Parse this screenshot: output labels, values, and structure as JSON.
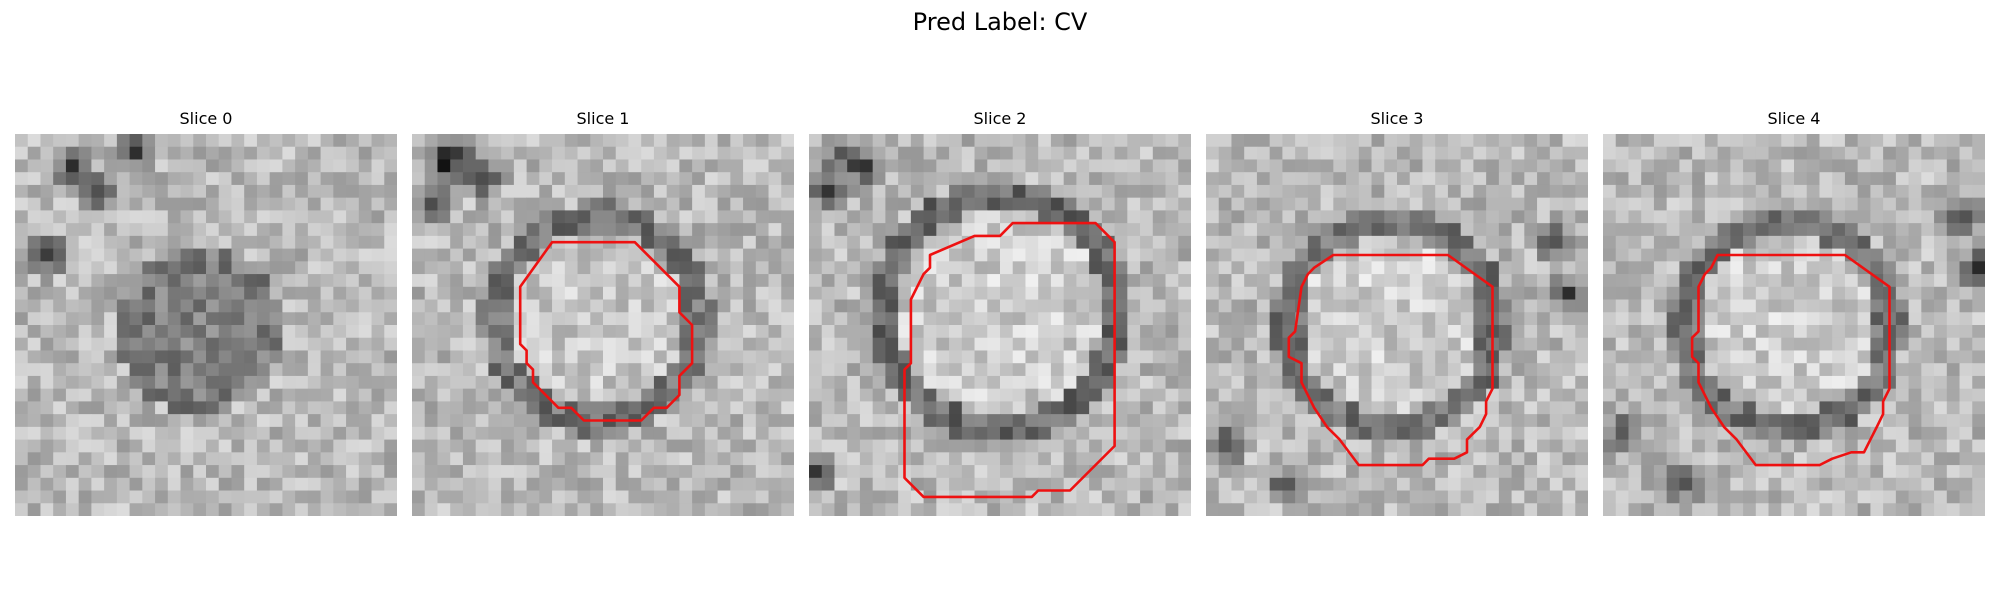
{
  "figure": {
    "title": "Pred Label: CV"
  },
  "panels": [
    {
      "title": "Slice 0",
      "has_contour": false
    },
    {
      "title": "Slice 1",
      "has_contour": true
    },
    {
      "title": "Slice 2",
      "has_contour": true
    },
    {
      "title": "Slice 3",
      "has_contour": true
    },
    {
      "title": "Slice 4",
      "has_contour": true
    }
  ],
  "colors": {
    "contour": "#ee1111",
    "background": "#ffffff"
  },
  "image": {
    "colormap": "grayscale",
    "grid": 30
  }
}
